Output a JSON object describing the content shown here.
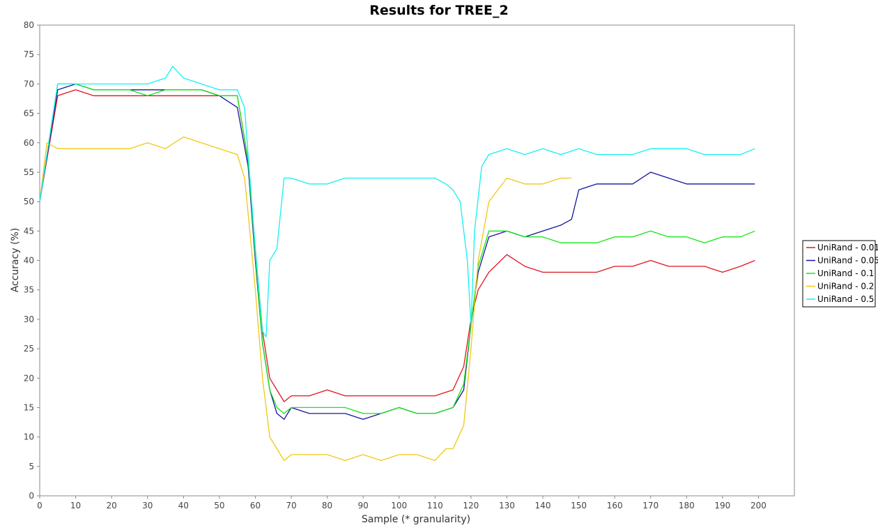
{
  "chart_data": {
    "type": "line",
    "title": "Results for TREE_2",
    "xlabel": "Sample (* granularity)",
    "ylabel": "Accuracy (%)",
    "xlim": [
      0,
      210
    ],
    "ylim": [
      0,
      80
    ],
    "xticks": [
      0,
      10,
      20,
      30,
      40,
      50,
      60,
      70,
      80,
      90,
      100,
      110,
      120,
      130,
      140,
      150,
      160,
      170,
      180,
      190,
      200
    ],
    "yticks": [
      0,
      5,
      10,
      15,
      20,
      25,
      30,
      35,
      40,
      45,
      50,
      55,
      60,
      65,
      70,
      75,
      80
    ],
    "grid": false,
    "legend_position": "right",
    "colors": {
      "UniRand - 0.01": "#e0141e",
      "UniRand - 0.05": "#1414a0",
      "UniRand - 0.1": "#14e614",
      "UniRand - 0.2": "#f0c814",
      "UniRand - 0.5": "#14f0f0"
    },
    "series": [
      {
        "name": "UniRand - 0.01",
        "x": [
          0,
          5,
          10,
          15,
          20,
          25,
          30,
          35,
          40,
          45,
          50,
          55,
          58,
          60,
          62,
          64,
          66,
          68,
          70,
          75,
          80,
          85,
          90,
          95,
          100,
          105,
          110,
          115,
          118,
          120,
          122,
          125,
          130,
          135,
          140,
          145,
          150,
          155,
          160,
          165,
          170,
          175,
          180,
          185,
          190,
          195,
          199
        ],
        "y": [
          50,
          68,
          69,
          68,
          68,
          68,
          68,
          68,
          68,
          68,
          68,
          68,
          57,
          42,
          28,
          20,
          18,
          16,
          17,
          17,
          18,
          17,
          17,
          17,
          17,
          17,
          17,
          18,
          22,
          30,
          35,
          38,
          41,
          39,
          38,
          38,
          38,
          38,
          39,
          39,
          40,
          39,
          39,
          39,
          38,
          39,
          40
        ]
      },
      {
        "name": "UniRand - 0.05",
        "x": [
          0,
          5,
          10,
          15,
          20,
          25,
          30,
          35,
          40,
          45,
          50,
          55,
          58,
          60,
          62,
          64,
          66,
          68,
          70,
          75,
          80,
          85,
          90,
          95,
          100,
          105,
          110,
          115,
          118,
          120,
          122,
          125,
          130,
          135,
          140,
          145,
          148,
          150,
          155,
          160,
          165,
          170,
          175,
          180,
          185,
          190,
          195,
          199
        ],
        "y": [
          50,
          69,
          70,
          69,
          69,
          69,
          69,
          69,
          69,
          69,
          68,
          66,
          56,
          40,
          26,
          18,
          14,
          13,
          15,
          14,
          14,
          14,
          13,
          14,
          15,
          14,
          14,
          15,
          18,
          29,
          38,
          44,
          45,
          44,
          45,
          46,
          47,
          52,
          53,
          53,
          53,
          55,
          54,
          53,
          53,
          53,
          53,
          53
        ]
      },
      {
        "name": "UniRand - 0.1",
        "x": [
          0,
          5,
          10,
          15,
          20,
          25,
          30,
          35,
          40,
          45,
          50,
          55,
          58,
          60,
          62,
          64,
          66,
          68,
          70,
          75,
          80,
          85,
          90,
          95,
          100,
          105,
          110,
          115,
          118,
          120,
          122,
          125,
          130,
          135,
          140,
          145,
          150,
          155,
          160,
          165,
          170,
          175,
          180,
          185,
          190,
          195,
          199
        ],
        "y": [
          50,
          70,
          70,
          69,
          69,
          69,
          68,
          69,
          69,
          69,
          68,
          68,
          57,
          41,
          26,
          18,
          15,
          14,
          15,
          15,
          15,
          15,
          14,
          14,
          15,
          14,
          14,
          15,
          19,
          29,
          39,
          45,
          45,
          44,
          44,
          43,
          43,
          43,
          44,
          44,
          45,
          44,
          44,
          43,
          44,
          44,
          45
        ]
      },
      {
        "name": "UniRand - 0.2",
        "x": [
          0,
          2,
          5,
          10,
          15,
          20,
          25,
          30,
          35,
          40,
          45,
          50,
          55,
          57,
          58,
          60,
          62,
          64,
          66,
          68,
          70,
          75,
          80,
          85,
          90,
          95,
          100,
          105,
          110,
          113,
          115,
          118,
          120,
          122,
          125,
          130,
          135,
          140,
          145,
          148
        ],
        "y": [
          50,
          60,
          59,
          59,
          59,
          59,
          59,
          60,
          59,
          61,
          60,
          59,
          58,
          54,
          48,
          35,
          20,
          10,
          8,
          6,
          7,
          7,
          7,
          6,
          7,
          6,
          7,
          7,
          6,
          8,
          8,
          12,
          25,
          40,
          50,
          54,
          53,
          53,
          54,
          54
        ]
      },
      {
        "name": "UniRand - 0.5",
        "x": [
          0,
          5,
          10,
          15,
          20,
          25,
          30,
          35,
          37,
          40,
          45,
          50,
          55,
          57,
          58,
          60,
          62,
          63,
          64,
          66,
          68,
          70,
          75,
          80,
          85,
          90,
          95,
          100,
          105,
          110,
          113,
          115,
          117,
          119,
          120,
          121,
          123,
          125,
          130,
          135,
          140,
          145,
          150,
          155,
          160,
          165,
          170,
          175,
          180,
          185,
          190,
          195,
          199
        ],
        "y": [
          50,
          70,
          70,
          70,
          70,
          70,
          70,
          71,
          73,
          71,
          70,
          69,
          69,
          66,
          58,
          42,
          28,
          27,
          40,
          42,
          54,
          54,
          53,
          53,
          54,
          54,
          54,
          54,
          54,
          54,
          53,
          52,
          50,
          40,
          29,
          45,
          56,
          58,
          59,
          58,
          59,
          58,
          59,
          58,
          58,
          58,
          59,
          59,
          59,
          58,
          58,
          58,
          59
        ]
      }
    ]
  }
}
